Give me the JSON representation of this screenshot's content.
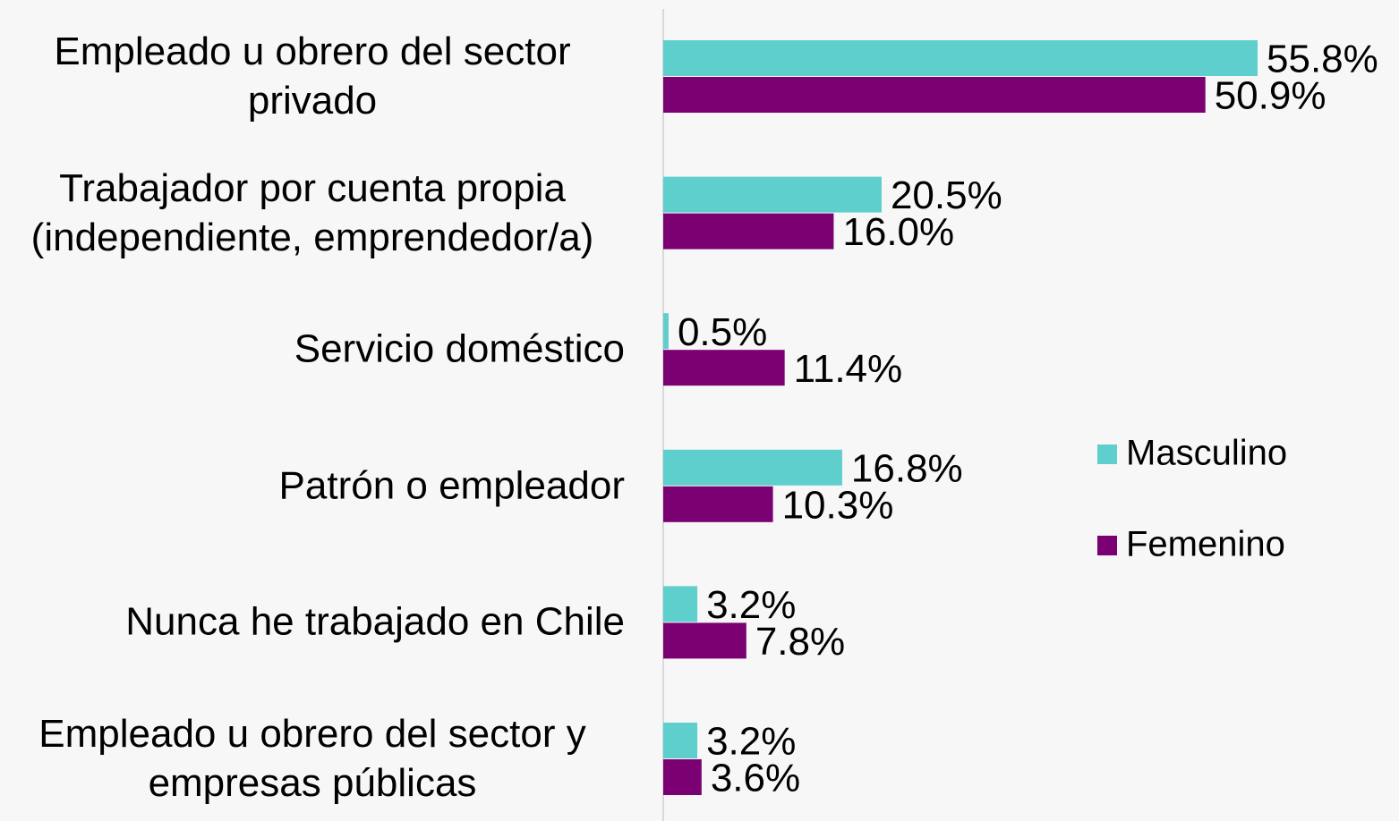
{
  "chart_data": {
    "type": "bar",
    "orientation": "horizontal",
    "categories": [
      "Empleado u obrero del sector privado",
      "Trabajador por cuenta propia (independiente, emprendedor/a)",
      "Servicio doméstico",
      "Patrón o empleador",
      "Nunca he trabajado en Chile",
      "Empleado u obrero del sector y empresas públicas"
    ],
    "series": [
      {
        "name": "Masculino",
        "color": "#5ecfcc",
        "values": [
          55.8,
          20.5,
          0.5,
          16.8,
          3.2,
          3.2
        ],
        "value_labels": [
          "55.8%",
          "20.5%",
          "0.5%",
          "16.8%",
          "3.2%",
          "3.2%"
        ]
      },
      {
        "name": "Femenino",
        "color": "#7b0072",
        "values": [
          50.9,
          16.0,
          11.4,
          10.3,
          7.8,
          3.6
        ],
        "value_labels": [
          "50.9%",
          "16.0%",
          "11.4%",
          "10.3%",
          "7.8%",
          "3.6%"
        ]
      }
    ],
    "legend": "right"
  }
}
